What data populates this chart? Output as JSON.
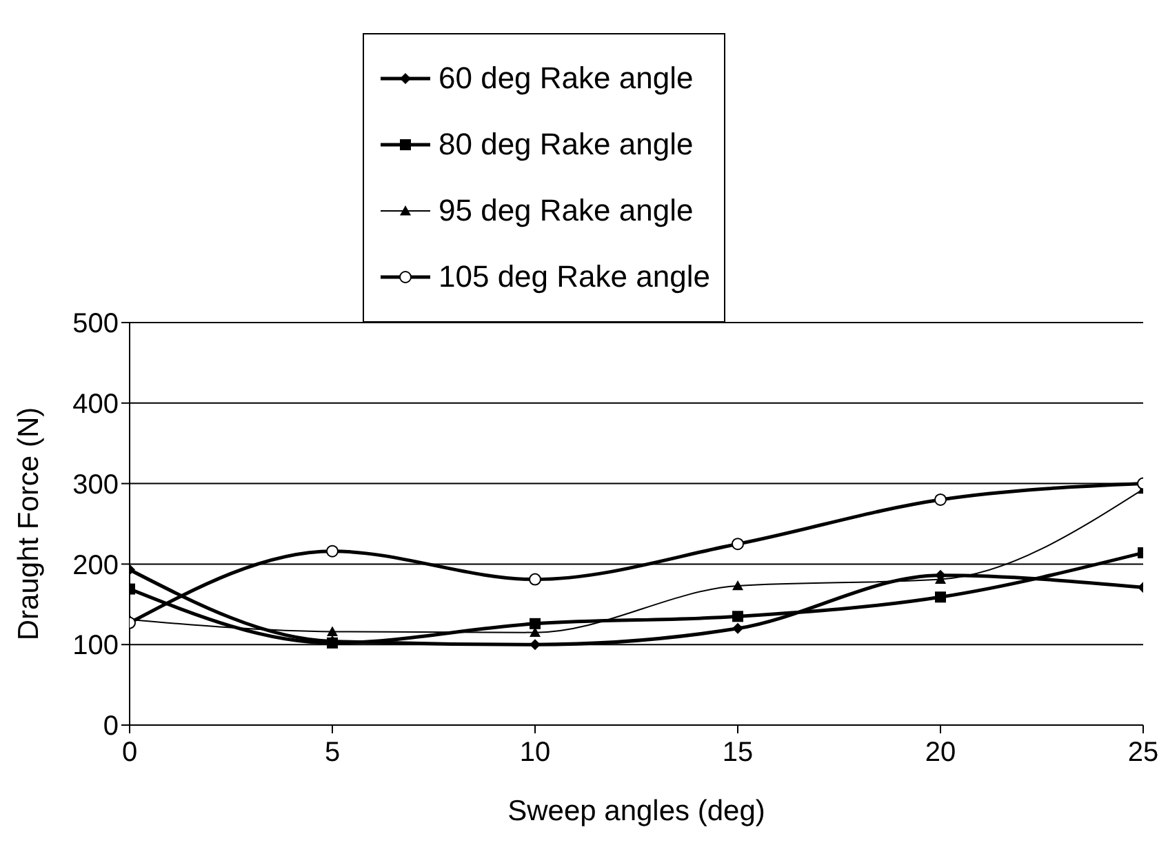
{
  "chart_data": {
    "type": "line",
    "xlabel": "Sweep angles (deg)",
    "ylabel": "Draught Force (N)",
    "x": [
      0,
      5,
      10,
      15,
      20,
      25
    ],
    "series": [
      {
        "name": "60 deg Rake angle",
        "color": "#000000",
        "marker": "diamond",
        "values": [
          193,
          104,
          100,
          120,
          186,
          171
        ]
      },
      {
        "name": "80 deg Rake angle",
        "color": "#000000",
        "marker": "square",
        "values": [
          169,
          102,
          126,
          135,
          159,
          214
        ]
      },
      {
        "name": "95 deg Rake angle",
        "color": "#000000",
        "marker": "triangle",
        "values": [
          131,
          116,
          115,
          173,
          181,
          293
        ]
      },
      {
        "name": "105 deg Rake angle",
        "color": "#000000",
        "marker": "circle",
        "values": [
          127,
          216,
          181,
          225,
          280,
          300
        ]
      }
    ],
    "xlim": [
      0,
      25
    ],
    "xticks": [
      0,
      5,
      10,
      15,
      20,
      25
    ],
    "ylim": [
      0,
      500
    ],
    "yticks": [
      0,
      100,
      200,
      300,
      400,
      500
    ],
    "grid": "y",
    "legend": "top",
    "line_style": "solid"
  }
}
